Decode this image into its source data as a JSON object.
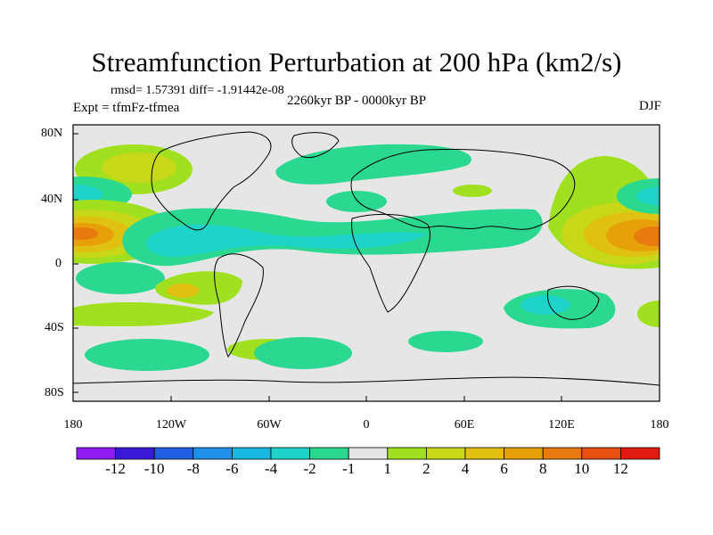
{
  "title": "Streamfunction Perturbation at 200 hPa (km2/s)",
  "stats": "rmsd= 1.57391 diff= -1.91442e-08",
  "experiment": "Expt = tfmFz-tfmea",
  "period": "2260kyr BP - 0000kyr BP",
  "season": "DJF",
  "colors": {
    "ocean_fill": "#e6e6e6",
    "coast": "#000000",
    "levels": [
      "#8c1cf0",
      "#3a18d8",
      "#1f5fe0",
      "#1f8fe8",
      "#18b8e0",
      "#1ed4c8",
      "#2ad890",
      "#e6e6e6",
      "#a0e01e",
      "#c8d818",
      "#e0c010",
      "#e8a008",
      "#e87a10",
      "#e85010",
      "#e01a10"
    ]
  },
  "map": {
    "y_ticks": [
      "80N",
      "40N",
      "0",
      "40S",
      "80S"
    ],
    "x_ticks": [
      "180",
      "120W",
      "60W",
      "0",
      "60E",
      "120E",
      "180"
    ]
  },
  "colorbar": {
    "labels": [
      "-12",
      "-10",
      "-8",
      "-6",
      "-4",
      "-2",
      "-1",
      "1",
      "2",
      "4",
      "6",
      "8",
      "10",
      "12"
    ]
  }
}
